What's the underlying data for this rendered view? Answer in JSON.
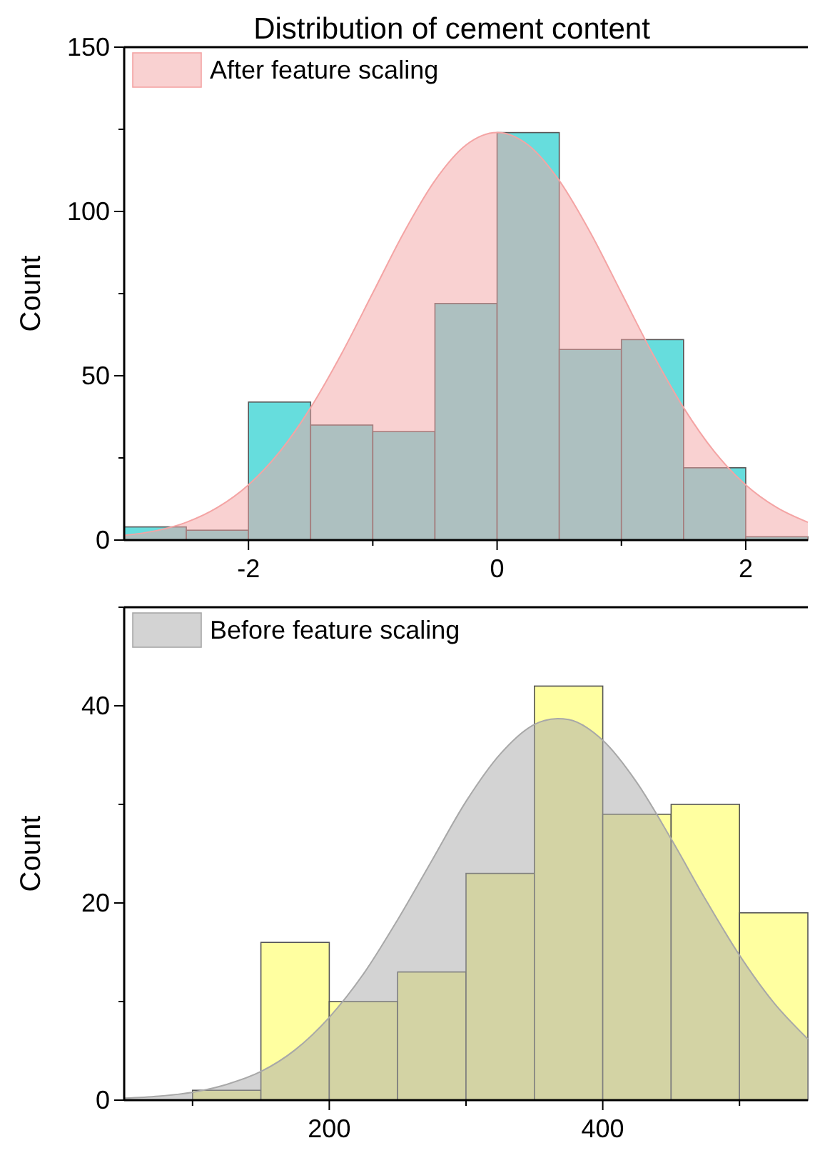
{
  "chart_data": [
    {
      "type": "histogram",
      "title": "Distribution of cement content",
      "ylabel": "Count",
      "xlim": [
        -3,
        2.5
      ],
      "ylim": [
        0,
        150
      ],
      "xticks": [
        -2,
        {
          "value": -1,
          "label": null
        },
        0,
        {
          "value": 1,
          "label": null
        },
        2
      ],
      "yticks": [
        0,
        {
          "value": 25,
          "label": null
        },
        50,
        {
          "value": 75,
          "label": null
        },
        100,
        {
          "value": 125,
          "label": null
        },
        150
      ],
      "legend": "top left",
      "grid": false,
      "series": [
        {
          "type": "histogram",
          "color": "#66dddd",
          "bins": [
            -3,
            -2.5,
            -2,
            -1.5,
            -1,
            -0.5,
            0,
            0.5,
            1,
            1.5,
            2,
            2.5
          ],
          "values": [
            4,
            3,
            42,
            35,
            33,
            72,
            124,
            58,
            61,
            22,
            1
          ]
        },
        {
          "type": "area",
          "name": "After feature scaling",
          "color": "#f4a4a4",
          "x": [
            -3,
            -2.75,
            -2.5,
            -2.25,
            -2,
            -1.75,
            -1.5,
            -1.25,
            -1,
            -0.75,
            -0.5,
            -0.25,
            0,
            0.25,
            0.5,
            0.75,
            1,
            1.25,
            1.5,
            1.75,
            2,
            2.25,
            2.5
          ],
          "values": [
            1.4,
            2.8,
            5.4,
            9.9,
            16.8,
            26.8,
            40.3,
            56.8,
            75.2,
            93.6,
            109.4,
            120.2,
            124,
            120.2,
            109.4,
            93.6,
            75.2,
            56.8,
            40.3,
            26.8,
            16.8,
            9.9,
            5.4
          ]
        }
      ]
    },
    {
      "type": "histogram",
      "ylabel": "Count",
      "xlim": [
        50,
        550
      ],
      "ylim": [
        0,
        50
      ],
      "xticks": [
        {
          "value": 100,
          "label": null
        },
        200,
        {
          "value": 300,
          "label": null
        },
        400,
        {
          "value": 500,
          "label": null
        }
      ],
      "yticks": [
        0,
        {
          "value": 10,
          "label": null
        },
        20,
        {
          "value": 30,
          "label": null
        },
        40,
        {
          "value": 50,
          "label": null
        }
      ],
      "legend": "top left",
      "grid": false,
      "series": [
        {
          "type": "histogram",
          "color": "#ffffa0",
          "bins": [
            100,
            150,
            200,
            250,
            300,
            350,
            400,
            450,
            500,
            550
          ],
          "values": [
            1,
            16,
            10,
            13,
            23,
            42,
            29,
            30,
            19
          ]
        },
        {
          "type": "area",
          "name": "Before feature scaling",
          "color": "#a8a8a8",
          "x": [
            50,
            75,
            100,
            125,
            150,
            175,
            200,
            225,
            250,
            275,
            300,
            325,
            350,
            367,
            375,
            400,
            425,
            450,
            475,
            500,
            525,
            550
          ],
          "values": [
            0.2,
            0.4,
            0.8,
            1.6,
            2.9,
            5.1,
            8.4,
            12.8,
            18.3,
            24.3,
            30.3,
            35.1,
            38.1,
            38.7,
            38.6,
            36.5,
            32.2,
            26.5,
            20.4,
            14.7,
            9.9,
            6.2
          ]
        }
      ]
    }
  ]
}
